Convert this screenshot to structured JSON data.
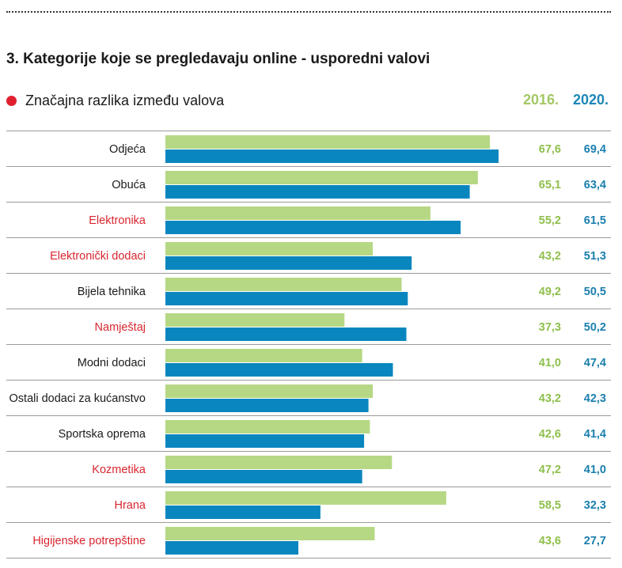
{
  "title": "3. Kategorije koje se pregledavaju online - usporedni valovi",
  "legend": {
    "label": "Značajna razlika između valova"
  },
  "colors": {
    "series_2016": "#b6d884",
    "series_2020": "#0a86bf",
    "value_2016": "#8fbf4d",
    "value_2020": "#1b7fae",
    "significant": "#d8262f",
    "normal": "#1a1a1a"
  },
  "chart_data": {
    "type": "bar",
    "orientation": "horizontal",
    "title": "3. Kategorije koje se pregledavaju online - usporedni valovi",
    "categories": [
      "Odjeća",
      "Obuća",
      "Elektronika",
      "Elektronički dodaci",
      "Bijela tehnika",
      "Namještaj",
      "Modni dodaci",
      "Ostali dodaci za kućanstvo",
      "Sportska oprema",
      "Kozmetika",
      "Hrana",
      "Higijenske potrepštine"
    ],
    "significant": [
      false,
      false,
      true,
      true,
      false,
      true,
      false,
      false,
      false,
      true,
      true,
      true
    ],
    "series": [
      {
        "name": "2016.",
        "values": [
          67.6,
          65.1,
          55.2,
          43.2,
          49.2,
          37.3,
          41.0,
          43.2,
          42.6,
          47.2,
          58.5,
          43.6
        ],
        "labels": [
          "67,6",
          "65,1",
          "55,2",
          "43,2",
          "49,2",
          "37,3",
          "41,0",
          "43,2",
          "42,6",
          "47,2",
          "58,5",
          "43,6"
        ]
      },
      {
        "name": "2020.",
        "values": [
          69.4,
          63.4,
          61.5,
          51.3,
          50.5,
          50.2,
          47.4,
          42.3,
          41.4,
          41.0,
          32.3,
          27.7
        ],
        "labels": [
          "69,4",
          "63,4",
          "61,5",
          "51,3",
          "50,5",
          "50,2",
          "47,4",
          "42,3",
          "41,4",
          "41,0",
          "32,3",
          "27,7"
        ]
      }
    ],
    "xlim": [
      0,
      100
    ],
    "grid": false
  }
}
